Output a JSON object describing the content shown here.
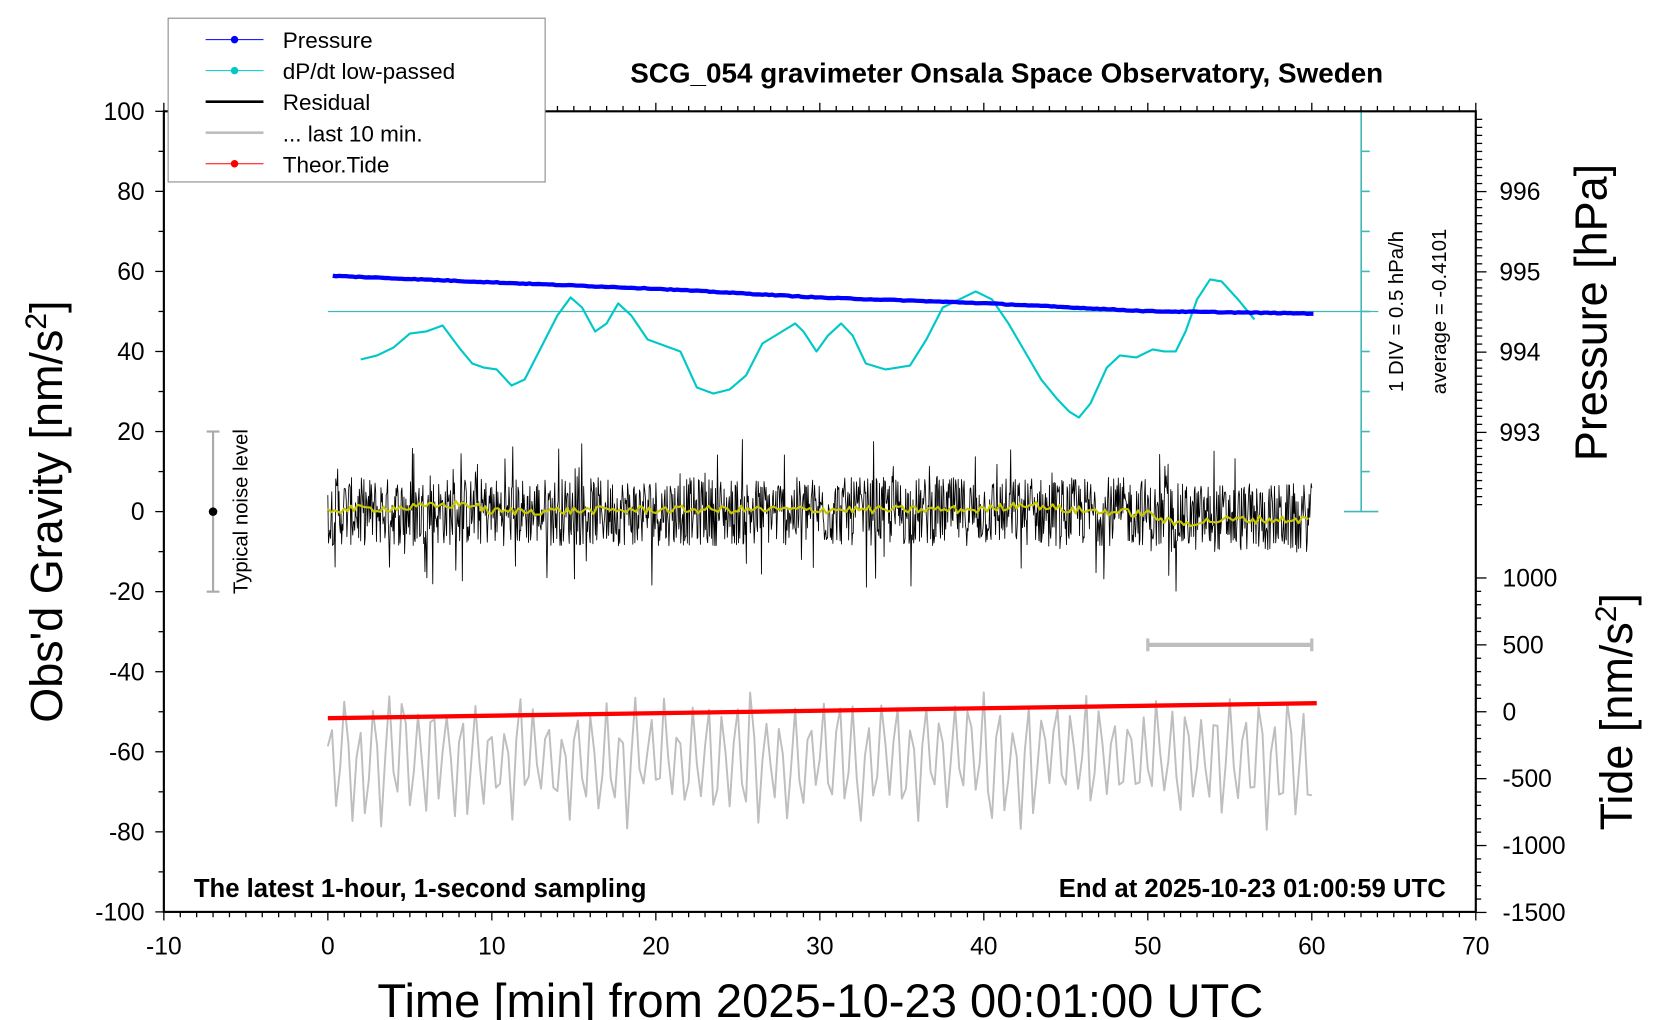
{
  "chart_data": {
    "type": "line",
    "title": "SCG_054 gravimeter Onsala Space Observatory, Sweden",
    "xlabel": "Time [min] from 2025-10-23 00:01:00 UTC",
    "ylabel_left": "Obs'd Gravity [nm/s2]",
    "ylabel_right_top": "Pressure [hPa]",
    "ylabel_right_bottom": "Tide [nm/s2]",
    "xlim": [
      -10,
      70
    ],
    "ylim_left": [
      -100,
      100
    ],
    "ylim_pressure": [
      992,
      997
    ],
    "ylim_tide": [
      -1500,
      1000
    ],
    "x_ticks": [
      "-10",
      "0",
      "10",
      "20",
      "30",
      "40",
      "50",
      "60",
      "70"
    ],
    "y_ticks_left": [
      "100",
      "80",
      "60",
      "40",
      "20",
      "0",
      "-20",
      "-40",
      "-60",
      "-80",
      "-100"
    ],
    "y_ticks_pressure": [
      "996",
      "995",
      "994",
      "993"
    ],
    "y_ticks_tide": [
      "1000",
      "500",
      "0",
      "-500",
      "-1000",
      "-1500"
    ],
    "grid": false,
    "legend_position": "top-left",
    "legend": [
      {
        "label": "Pressure",
        "color": "#0000ff",
        "marker": true
      },
      {
        "label": "dP/dt low-passed",
        "color": "#00c8c8",
        "marker": true
      },
      {
        "label": "Residual",
        "color": "#000000",
        "marker": false
      },
      {
        "label": "... last 10 min.",
        "color": "#bebebe",
        "marker": false
      },
      {
        "label": "Theor.Tide",
        "color": "#ff0000",
        "marker": true
      }
    ],
    "annotations": {
      "left_bottom": "The latest 1-hour, 1-second sampling",
      "right_bottom": "End at 2025-10-23 01:00:59 UTC",
      "div_note": "1 DIV = 0.5 hPa/h",
      "average_note": "average = -0.4101",
      "noise_label": "Typical noise level"
    },
    "noise_level": {
      "x": -7,
      "center": 0,
      "range": [
        -20,
        20
      ]
    },
    "last10_marker": {
      "x_range": [
        50,
        60
      ],
      "tide": 500
    },
    "pressure": {
      "x": [
        0.3,
        10,
        20,
        30,
        40,
        50,
        60.3
      ],
      "y": [
        994.95,
        994.87,
        994.79,
        994.68,
        994.61,
        994.51,
        994.48
      ]
    },
    "dpdt": {
      "unit": "hPa/h",
      "x": [
        2,
        3,
        4,
        5,
        6,
        7,
        8,
        8.8,
        9.5,
        10.3,
        11.2,
        12,
        13,
        14,
        14.8,
        15.5,
        16.3,
        17,
        17.7,
        18.5,
        19.5,
        20.5,
        21.5,
        22.5,
        23.5,
        24.5,
        25.5,
        26.5,
        27.5,
        28.5,
        29,
        29.8,
        30.5,
        31.3,
        32,
        32.8,
        34,
        35.5,
        36.5,
        37.5,
        38.5,
        39.5,
        40.5,
        41.5,
        42.5,
        43.5,
        44.5,
        45.2,
        45.8,
        46.5,
        47.5,
        48.3,
        49.3,
        50.3,
        51,
        51.7,
        52.3,
        53,
        53.8,
        54.5,
        55.5,
        56.5
      ],
      "y": [
        -0.6,
        -0.55,
        -0.45,
        -0.275,
        -0.25,
        -0.175,
        -0.45,
        -0.65,
        -0.7,
        -0.725,
        -0.925,
        -0.85,
        -0.45,
        -0.05,
        0.175,
        0.05,
        -0.25,
        -0.15,
        0.1,
        -0.05,
        -0.35,
        -0.425,
        -0.5,
        -0.95,
        -1.025,
        -0.975,
        -0.8,
        -0.4,
        -0.275,
        -0.15,
        -0.25,
        -0.5,
        -0.3,
        -0.15,
        -0.3,
        -0.65,
        -0.725,
        -0.675,
        -0.35,
        0.05,
        0.15,
        0.25,
        0.15,
        -0.15,
        -0.5,
        -0.85,
        -1.1,
        -1.25,
        -1.325,
        -1.15,
        -0.7,
        -0.55,
        -0.575,
        -0.475,
        -0.5,
        -0.5,
        -0.25,
        0.15,
        0.4,
        0.375,
        0.15,
        -0.1
      ]
    },
    "residual": {
      "x_range": [
        0,
        60
      ],
      "y_range": [
        -20,
        18
      ]
    },
    "residual_smoothed": {
      "color": "#c8c800",
      "x": [
        0,
        5,
        8.5,
        10,
        20,
        30,
        40,
        42.5,
        45,
        50,
        51.5,
        55,
        60
      ],
      "y": [
        0.5,
        1,
        2,
        0,
        0.5,
        0.5,
        0.5,
        2,
        0.5,
        -0.5,
        -3,
        -2,
        -2
      ]
    },
    "last_10_min": {
      "x_range": [
        0,
        60
      ],
      "y_range": [
        -80,
        -44
      ]
    },
    "tide": {
      "x": [
        0,
        60.3
      ],
      "y": [
        -48,
        64
      ]
    }
  }
}
